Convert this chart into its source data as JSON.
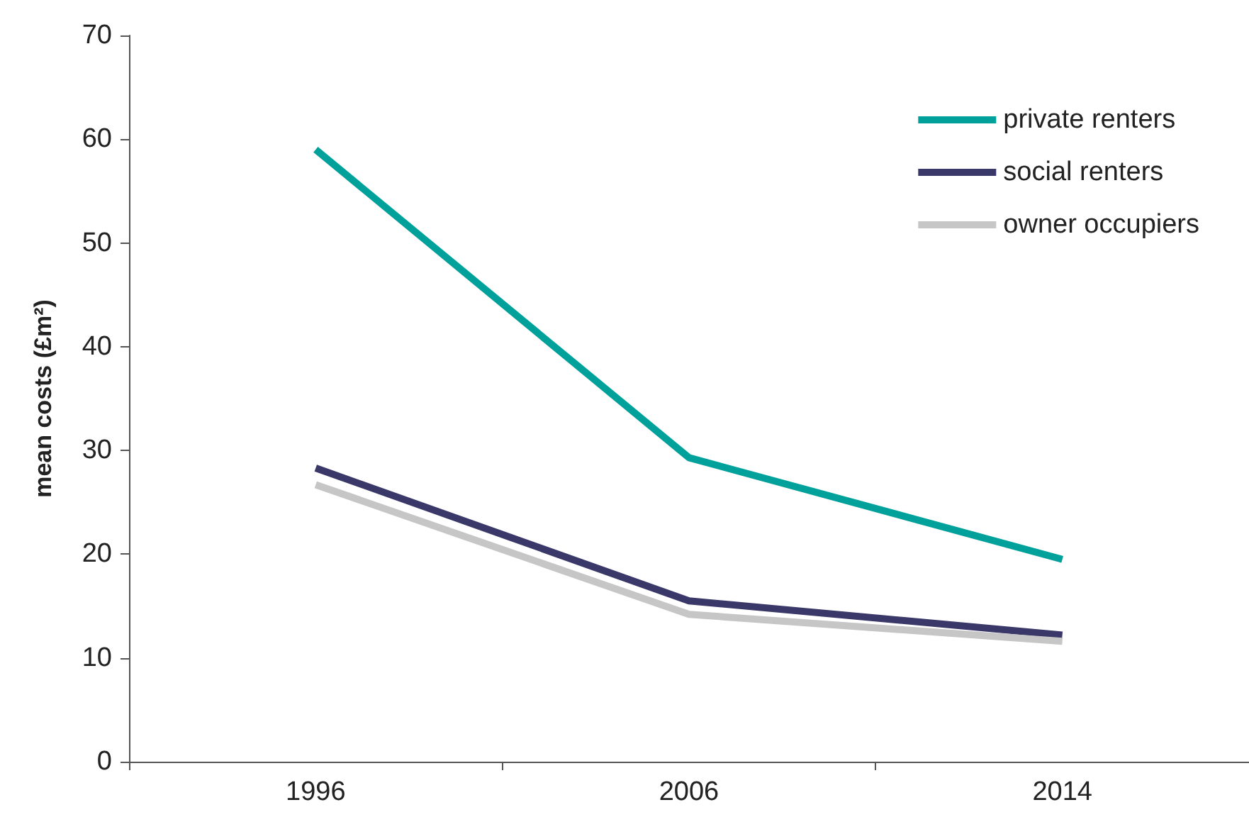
{
  "chart_data": {
    "type": "line",
    "ylabel": "mean costs (£m²)",
    "categories": [
      "1996",
      "2006",
      "2014"
    ],
    "series": [
      {
        "name": "private renters",
        "color": "#00a19a",
        "values": [
          59,
          29.3,
          19.5
        ]
      },
      {
        "name": "social renters",
        "color": "#3a3869",
        "values": [
          28.3,
          15.5,
          12.2
        ]
      },
      {
        "name": "owner occupiers",
        "color": "#c6c6c6",
        "values": [
          26.7,
          14.2,
          11.6
        ]
      }
    ],
    "ylim": [
      0,
      70
    ],
    "yticks": [
      0,
      10,
      20,
      30,
      40,
      50,
      60,
      70
    ],
    "grid": false,
    "legend": "top right",
    "marker": "none",
    "line_style": "solid"
  }
}
